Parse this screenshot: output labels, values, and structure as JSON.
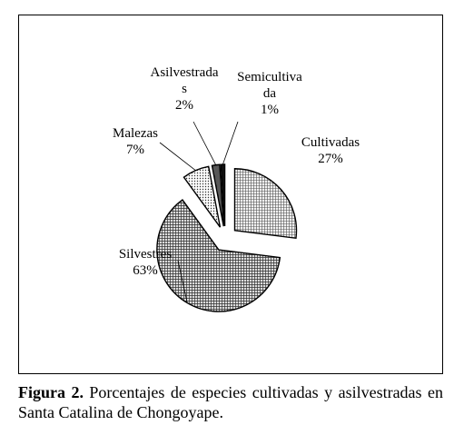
{
  "chart_data": {
    "type": "pie",
    "title": "",
    "slices": [
      {
        "name_lines": [
          "Cultivadas"
        ],
        "pct_label": "27%",
        "value": 27,
        "color": "#d8d8d8",
        "pattern": "grid-fine"
      },
      {
        "name_lines": [
          "Silvestres"
        ],
        "pct_label": "63%",
        "value": 63,
        "color": "#bdbdbd",
        "pattern": "crosshatch"
      },
      {
        "name_lines": [
          "Malezas"
        ],
        "pct_label": "7%",
        "value": 7,
        "color": "#e6e6e6",
        "pattern": "dots"
      },
      {
        "name_lines": [
          "Asilvestrada",
          "s"
        ],
        "pct_label": "2%",
        "value": 2,
        "color": "#a0a0a0",
        "pattern": "dense"
      },
      {
        "name_lines": [
          "Semicultiva",
          "da"
        ],
        "pct_label": "1%",
        "value": 1,
        "color": "#222222",
        "pattern": "solid"
      }
    ],
    "legend": "none",
    "exploded": true
  },
  "caption": {
    "label": "Figura 2.",
    "text": " Porcentajes de especies cultivadas y asilvestradas en Santa Catalina de Chongoyape."
  }
}
